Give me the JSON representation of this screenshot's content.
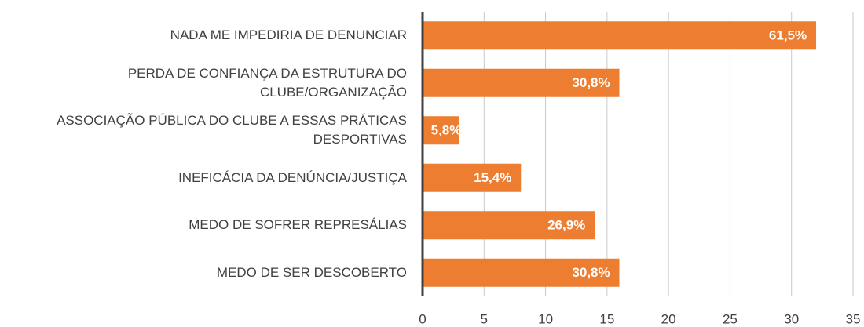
{
  "chart_data": {
    "type": "barh",
    "categories": [
      "NADA ME IMPEDIRIA DE DENUNCIAR",
      "PERDA DE CONFIANÇA DA ESTRUTURA DO\nCLUBE/ORGANIZAÇÃO",
      "ASSOCIAÇÃO PÚBLICA DO CLUBE A ESSAS PRÁTICAS\nDESPORTIVAS",
      "INEFICÁCIA DA DENÚNCIA/JUSTIÇA",
      "MEDO DE SOFRER REPRESÁLIAS",
      "MEDO DE SER DESCOBERTO"
    ],
    "values": [
      32,
      16,
      3,
      8,
      14,
      16
    ],
    "value_labels": [
      "61,5%",
      "30,8%",
      "5,8%",
      "15,4%",
      "26,9%",
      "30,8%"
    ],
    "color": "#ed7d31",
    "xlim": [
      0,
      35
    ],
    "xticks": [
      0,
      5,
      10,
      15,
      20,
      25,
      30,
      35
    ],
    "grid": true
  }
}
